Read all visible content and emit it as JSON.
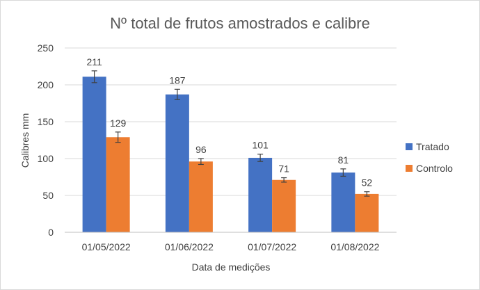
{
  "chart_data": {
    "type": "bar",
    "title": "Nº total de frutos amostrados e calibre",
    "xlabel": "Data de medições",
    "ylabel": "Calibres mm",
    "ylim": [
      0,
      250
    ],
    "yticks": [
      "0",
      "50",
      "100",
      "150",
      "200",
      "250"
    ],
    "grid": true,
    "legend_position": "right",
    "categories": [
      "01/05/2022",
      "01/06/2022",
      "01/07/2022",
      "01/08/2022"
    ],
    "series": [
      {
        "name": "Tratado",
        "color": "#4472c4",
        "values": [
          211,
          187,
          101,
          81
        ],
        "error": [
          8,
          7,
          5,
          5
        ]
      },
      {
        "name": "Controlo",
        "color": "#ed7d31",
        "values": [
          129,
          96,
          71,
          52
        ],
        "error": [
          7,
          4,
          3,
          3
        ]
      }
    ],
    "error_bars": true
  }
}
